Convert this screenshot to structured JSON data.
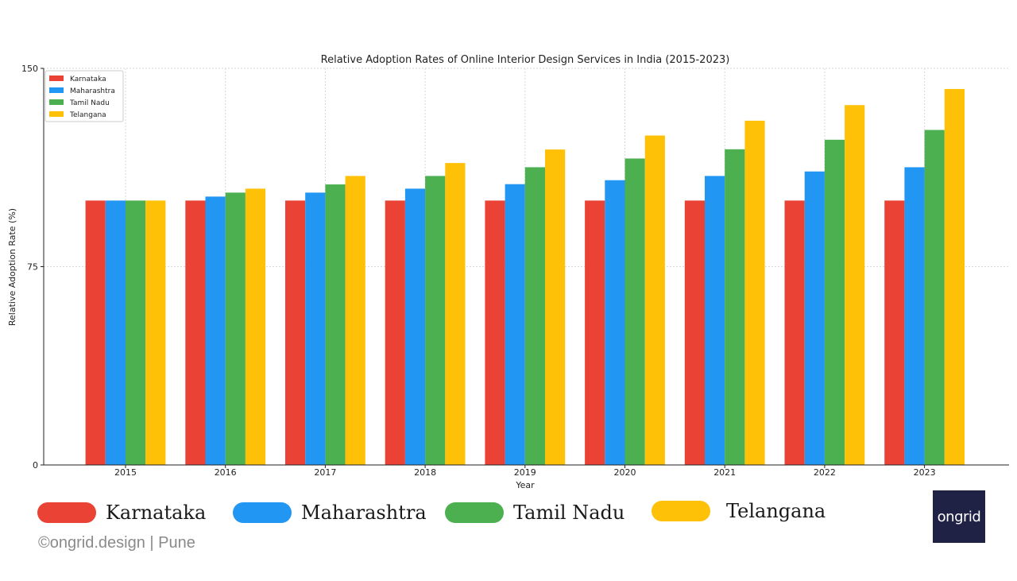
{
  "chart_data": {
    "type": "bar",
    "title": "Relative Adoption Rates of Online Interior Design Services in India (2015-2023)",
    "xlabel": "Year",
    "ylabel": "Relative Adoption Rate (%)",
    "ylim": [
      0,
      150
    ],
    "yticks": [
      0,
      75,
      150
    ],
    "grid": true,
    "legend_position": "top-left",
    "categories": [
      "2015",
      "2016",
      "2017",
      "2018",
      "2019",
      "2020",
      "2021",
      "2022",
      "2023"
    ],
    "series": [
      {
        "name": "Karnataka",
        "color": "#EA4335",
        "values": [
          100,
          100,
          100,
          100,
          100,
          100,
          100,
          100,
          100
        ]
      },
      {
        "name": "Maharashtra",
        "color": "#2196F3",
        "values": [
          100,
          101.5,
          103,
          104.5,
          106.2,
          107.7,
          109.3,
          111,
          112.6
        ]
      },
      {
        "name": "Tamil Nadu",
        "color": "#4CAF50",
        "values": [
          100,
          103,
          106.1,
          109.3,
          112.6,
          115.9,
          119.4,
          123,
          126.7
        ]
      },
      {
        "name": "Telangana",
        "color": "#FFC107",
        "values": [
          100,
          104.5,
          109.3,
          114.2,
          119.3,
          124.6,
          130.2,
          136.1,
          142.2
        ]
      }
    ]
  },
  "big_legend": [
    {
      "label": "Karnataka",
      "color": "#EA4335"
    },
    {
      "label": "Maharashtra",
      "color": "#2196F3"
    },
    {
      "label": "Tamil Nadu",
      "color": "#4CAF50"
    },
    {
      "label": "Telangana",
      "color": "#FFC107"
    }
  ],
  "footer": {
    "credit": "©ongrid.design | Pune"
  },
  "logo": {
    "text": "ongrid"
  }
}
